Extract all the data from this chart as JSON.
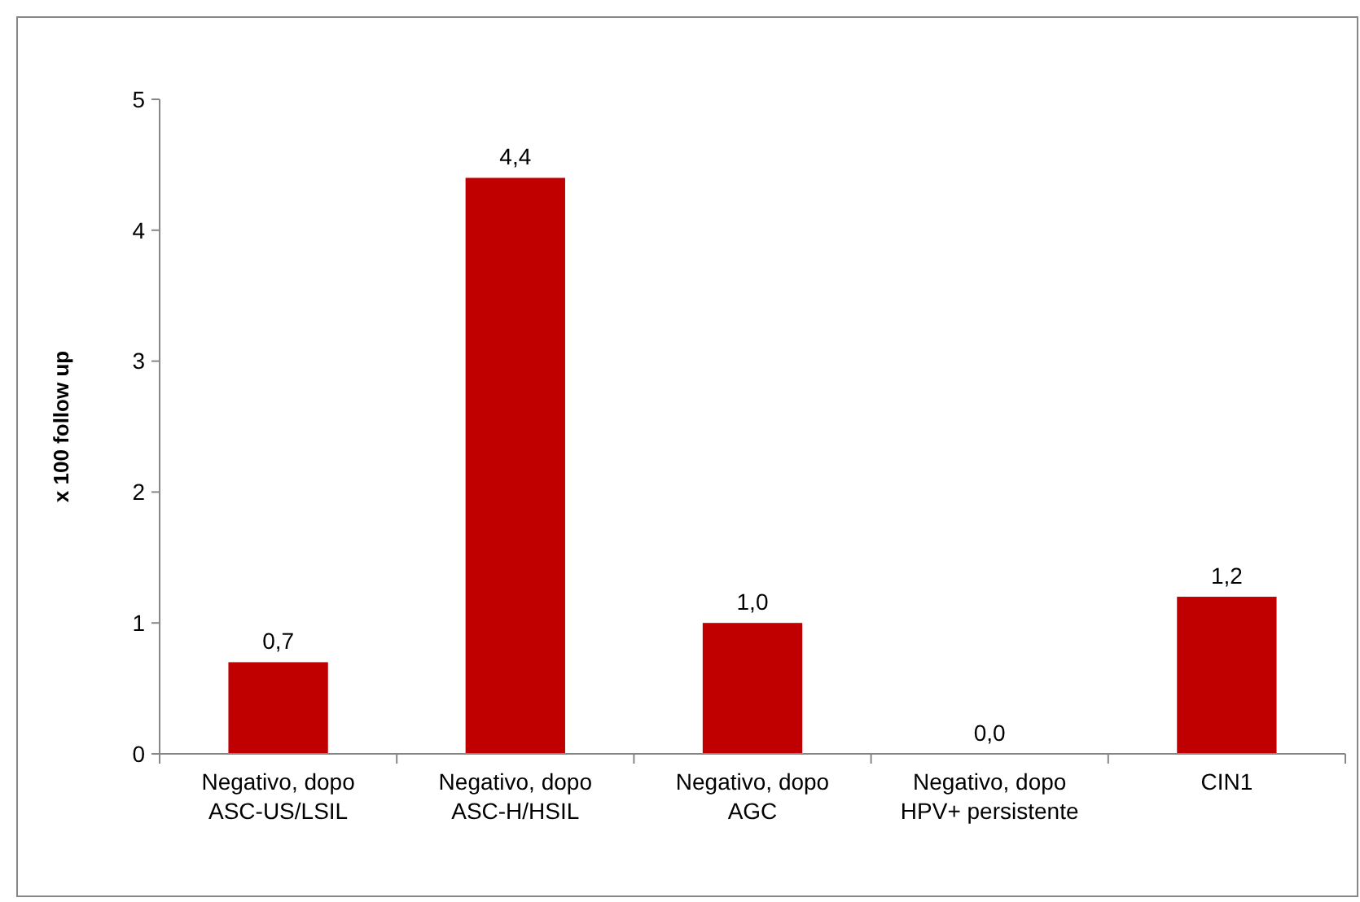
{
  "chart_data": {
    "type": "bar",
    "ylabel": "x 100  follow up",
    "categories": [
      "Negativo, dopo ASC-US/LSIL",
      "Negativo, dopo ASC-H/HSIL",
      "Negativo, dopo AGC",
      "Negativo, dopo HPV+ persistente",
      "CIN1"
    ],
    "values": [
      0.7,
      4.4,
      1.0,
      0.0,
      1.2
    ],
    "value_labels": [
      "0,7",
      "4,4",
      "1,0",
      "0,0",
      "1,2"
    ],
    "color": "#c00000",
    "ylim": [
      0,
      5
    ],
    "yticks": [
      0,
      1,
      2,
      3,
      4,
      5
    ],
    "grid": false
  }
}
